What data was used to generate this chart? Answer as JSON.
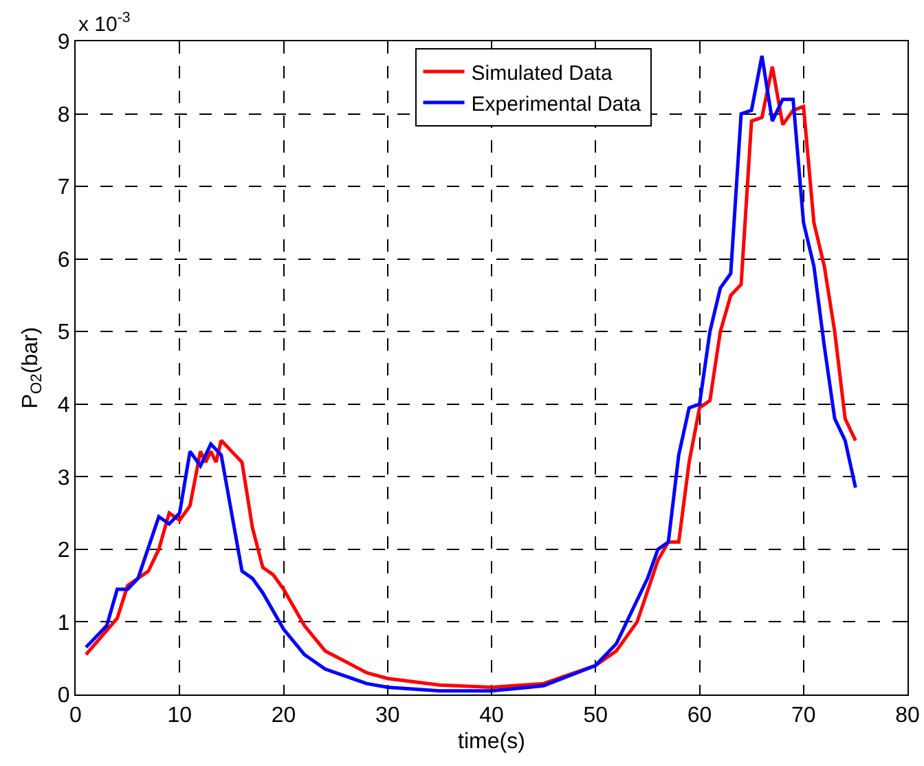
{
  "chart_data": {
    "type": "line",
    "xlabel": "time(s)",
    "ylabel": "P$_{O2}$(bar)",
    "annotations": [
      "x 10$^{-3}$"
    ],
    "xlim": [
      0,
      80
    ],
    "xticks": [
      0,
      10,
      20,
      30,
      40,
      50,
      60,
      70,
      80
    ],
    "ylim": [
      0,
      9
    ],
    "yticks": [
      0,
      1,
      2,
      3,
      4,
      5,
      6,
      7,
      8,
      9
    ],
    "grid": true,
    "legend": "top",
    "marker": "none",
    "line_style": "solid",
    "series": [
      {
        "name": "Simulated Data",
        "color": "#ff0000",
        "x": [
          1,
          4,
          5,
          7,
          8,
          9,
          10,
          11,
          12,
          12.5,
          13,
          13.5,
          14,
          15,
          16,
          17,
          18,
          19,
          20,
          22,
          24,
          26,
          28,
          30,
          35,
          40,
          45,
          48,
          50,
          52,
          54,
          56,
          57,
          58,
          59,
          60,
          61,
          62,
          63,
          64,
          65,
          66,
          67,
          68,
          69,
          70,
          71,
          72,
          73,
          74,
          75
        ],
        "values": [
          0.55,
          1.05,
          1.5,
          1.7,
          2.0,
          2.5,
          2.4,
          2.6,
          3.35,
          3.2,
          3.35,
          3.2,
          3.5,
          3.35,
          3.2,
          2.3,
          1.75,
          1.65,
          1.45,
          0.95,
          0.6,
          0.45,
          0.3,
          0.22,
          0.13,
          0.1,
          0.15,
          0.3,
          0.4,
          0.6,
          1.0,
          1.85,
          2.1,
          2.1,
          3.2,
          3.95,
          4.05,
          5.0,
          5.5,
          5.65,
          7.9,
          7.95,
          8.65,
          7.85,
          8.05,
          8.1,
          6.5,
          5.9,
          5.0,
          3.8,
          3.5
        ]
      },
      {
        "name": "Experimental Data",
        "color": "#0000ff",
        "x": [
          1,
          3,
          4,
          5,
          6,
          8,
          9,
          10,
          11,
          12,
          13,
          14,
          15,
          16,
          17,
          18,
          20,
          22,
          24,
          26,
          28,
          30,
          35,
          40,
          45,
          50,
          52,
          55,
          56,
          57,
          58,
          59,
          60,
          61,
          62,
          63,
          64,
          65,
          66,
          67,
          68,
          69,
          70,
          71,
          72,
          73,
          74,
          75
        ],
        "values": [
          0.65,
          0.95,
          1.45,
          1.45,
          1.6,
          2.45,
          2.35,
          2.5,
          3.35,
          3.15,
          3.45,
          3.3,
          2.5,
          1.7,
          1.6,
          1.4,
          0.9,
          0.55,
          0.35,
          0.25,
          0.15,
          0.1,
          0.05,
          0.05,
          0.12,
          0.4,
          0.7,
          1.6,
          2.0,
          2.1,
          3.3,
          3.95,
          4.0,
          5.0,
          5.6,
          5.8,
          8.0,
          8.05,
          8.8,
          7.9,
          8.2,
          8.2,
          6.5,
          5.9,
          4.8,
          3.8,
          3.5,
          2.85
        ]
      }
    ]
  }
}
